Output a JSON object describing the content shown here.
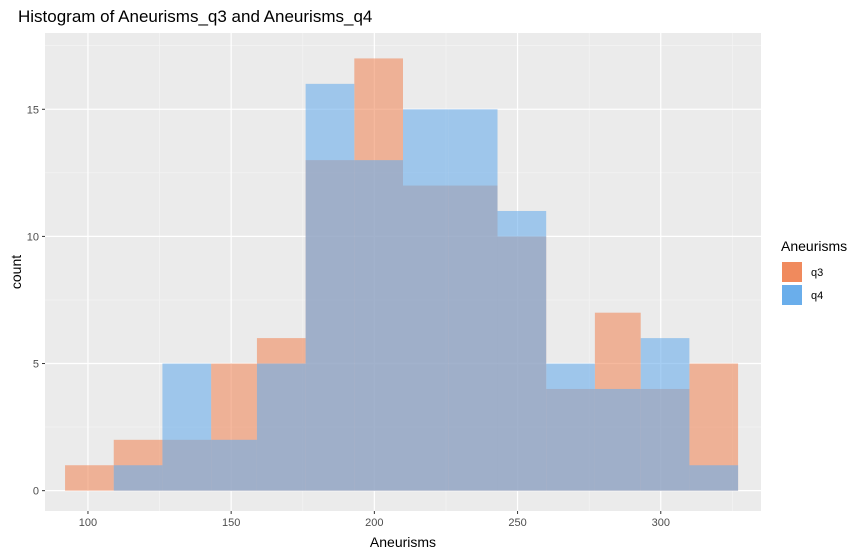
{
  "chart_data": {
    "type": "histogram",
    "title": "Histogram of Aneurisms_q3 and Aneurisms_q4",
    "xlabel": "Aneurisms",
    "ylabel": "count",
    "xlim": [
      85,
      335
    ],
    "ylim": [
      -0.8,
      18.0
    ],
    "x_ticks": [
      100,
      150,
      200,
      250,
      300
    ],
    "y_ticks": [
      0,
      5,
      10,
      15
    ],
    "bins": [
      [
        92,
        109
      ],
      [
        109,
        126
      ],
      [
        126,
        143
      ],
      [
        143,
        159
      ],
      [
        159,
        176
      ],
      [
        176,
        193
      ],
      [
        193,
        210
      ],
      [
        210,
        226
      ],
      [
        226,
        243
      ],
      [
        243,
        260
      ],
      [
        260,
        277
      ],
      [
        277,
        293
      ],
      [
        293,
        310
      ],
      [
        310,
        327
      ]
    ],
    "legend": {
      "title": "Aneurisms",
      "position": "right"
    },
    "series": [
      {
        "name": "q3",
        "color": "#F08A5D",
        "values": [
          1,
          2,
          2,
          5,
          6,
          13,
          17,
          12,
          12,
          10,
          4,
          7,
          4,
          5
        ]
      },
      {
        "name": "q4",
        "color": "#6AAEEB",
        "values": [
          0,
          1,
          5,
          2,
          5,
          16,
          13,
          15,
          15,
          11,
          5,
          4,
          6,
          1
        ]
      }
    ],
    "grid": true,
    "background": "#EBEBEB"
  }
}
